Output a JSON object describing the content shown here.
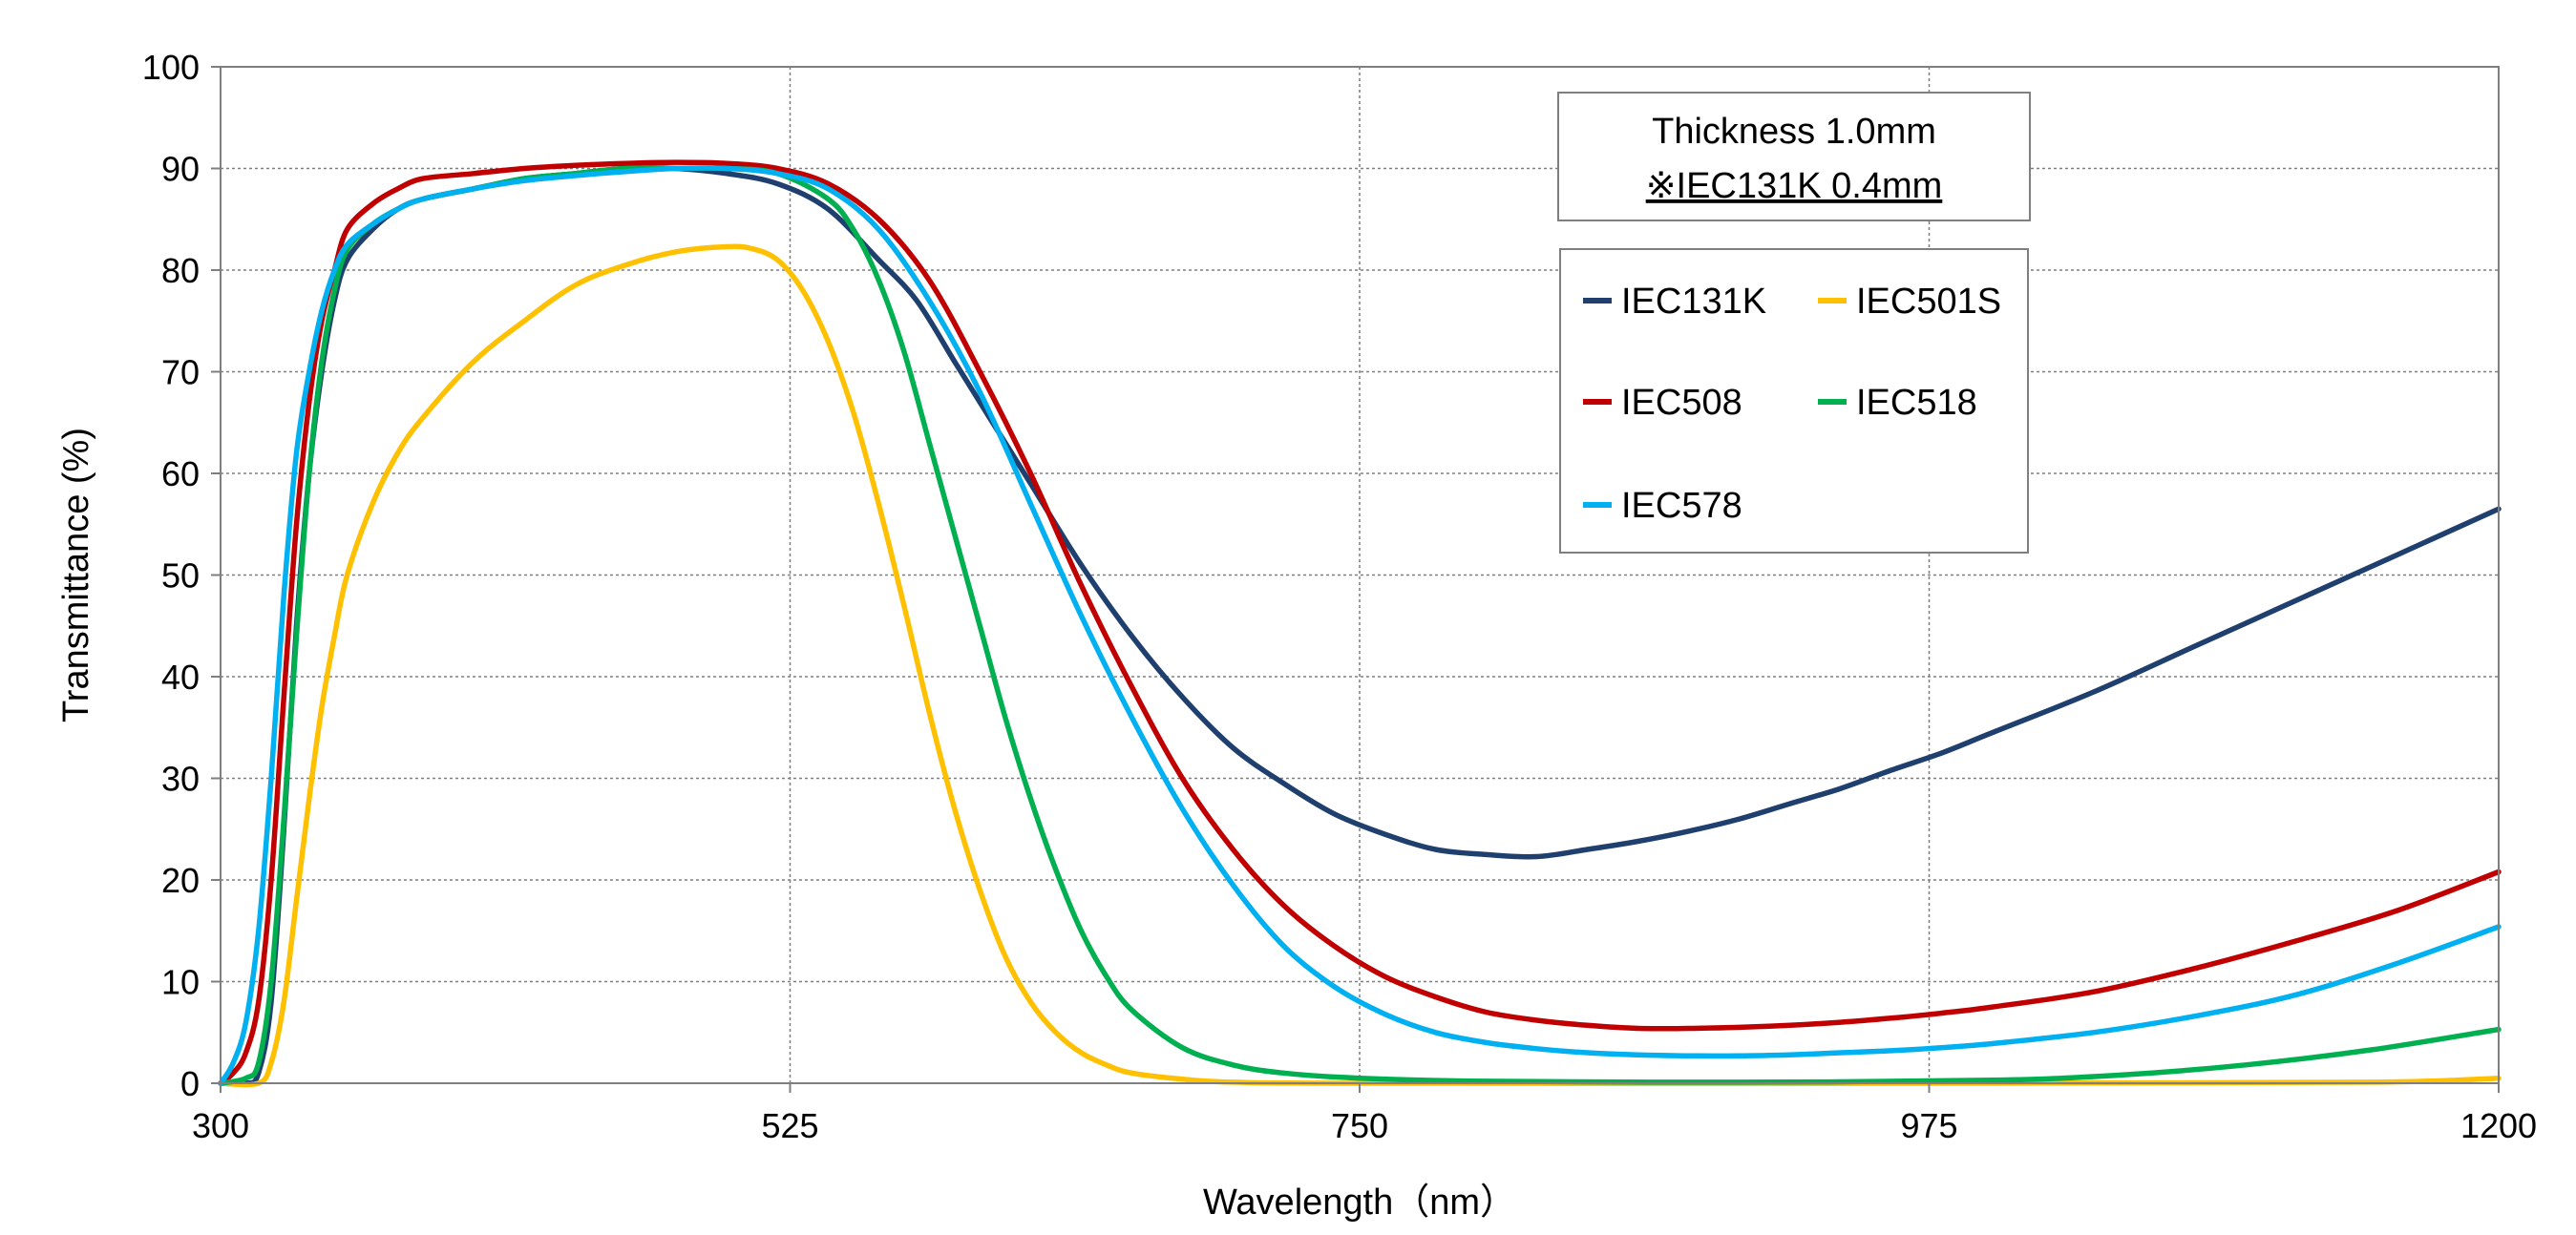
{
  "chart_data": {
    "type": "line",
    "xlabel": "Wavelength（nm）",
    "ylabel": "Transmittance (%)",
    "xlim": [
      300,
      1200
    ],
    "ylim": [
      0,
      100
    ],
    "x_ticks": [
      300,
      525,
      750,
      975,
      1200
    ],
    "y_ticks": [
      0,
      10,
      20,
      30,
      40,
      50,
      60,
      70,
      80,
      90,
      100
    ],
    "x_tick_labels": [
      "300",
      "525",
      "750",
      "975",
      "1200"
    ],
    "y_tick_labels": [
      "0",
      "10",
      "20",
      "30",
      "40",
      "50",
      "60",
      "70",
      "80",
      "90",
      "100"
    ],
    "grid": "dotted",
    "annotation": [
      "Thickness  1.0mm",
      "※IEC131K  0.4mm"
    ],
    "legend_position": "upper-right",
    "series": [
      {
        "name": "IEC131K",
        "color": "#1F3F6E",
        "points": [
          [
            300,
            0
          ],
          [
            310,
            0
          ],
          [
            315,
            1
          ],
          [
            320,
            8
          ],
          [
            325,
            25
          ],
          [
            330,
            45
          ],
          [
            335,
            60
          ],
          [
            340,
            70
          ],
          [
            345,
            77
          ],
          [
            350,
            81
          ],
          [
            360,
            84
          ],
          [
            370,
            86
          ],
          [
            380,
            87
          ],
          [
            400,
            88
          ],
          [
            420,
            89
          ],
          [
            440,
            89.5
          ],
          [
            460,
            90
          ],
          [
            480,
            90
          ],
          [
            500,
            89.5
          ],
          [
            520,
            88.5
          ],
          [
            540,
            86
          ],
          [
            560,
            81
          ],
          [
            575,
            77
          ],
          [
            590,
            71
          ],
          [
            600,
            67
          ],
          [
            620,
            59
          ],
          [
            640,
            51
          ],
          [
            660,
            44
          ],
          [
            680,
            38
          ],
          [
            700,
            33
          ],
          [
            720,
            29.5
          ],
          [
            740,
            26.5
          ],
          [
            760,
            24.5
          ],
          [
            780,
            23
          ],
          [
            800,
            22.5
          ],
          [
            820,
            22.3
          ],
          [
            840,
            23
          ],
          [
            860,
            23.8
          ],
          [
            880,
            24.8
          ],
          [
            900,
            26
          ],
          [
            920,
            27.5
          ],
          [
            940,
            29
          ],
          [
            960,
            30.8
          ],
          [
            980,
            32.5
          ],
          [
            1000,
            34.5
          ],
          [
            1040,
            38.5
          ],
          [
            1080,
            43
          ],
          [
            1120,
            47.5
          ],
          [
            1160,
            52
          ],
          [
            1200,
            56.5
          ]
        ]
      },
      {
        "name": "IEC501S",
        "color": "#FFC000",
        "points": [
          [
            300,
            0
          ],
          [
            315,
            0
          ],
          [
            320,
            2
          ],
          [
            325,
            8
          ],
          [
            330,
            18
          ],
          [
            335,
            28
          ],
          [
            340,
            37
          ],
          [
            345,
            44
          ],
          [
            350,
            50
          ],
          [
            360,
            57
          ],
          [
            370,
            62
          ],
          [
            380,
            65.5
          ],
          [
            400,
            71
          ],
          [
            420,
            75
          ],
          [
            440,
            78.5
          ],
          [
            460,
            80.5
          ],
          [
            480,
            81.8
          ],
          [
            500,
            82.3
          ],
          [
            510,
            82.1
          ],
          [
            520,
            81
          ],
          [
            530,
            78
          ],
          [
            540,
            73
          ],
          [
            550,
            66
          ],
          [
            560,
            57
          ],
          [
            570,
            47
          ],
          [
            580,
            36.5
          ],
          [
            590,
            27
          ],
          [
            600,
            19
          ],
          [
            610,
            12.5
          ],
          [
            620,
            8
          ],
          [
            630,
            5
          ],
          [
            640,
            3
          ],
          [
            650,
            1.8
          ],
          [
            660,
            1
          ],
          [
            680,
            0.4
          ],
          [
            700,
            0.1
          ],
          [
            750,
            0
          ],
          [
            1000,
            0
          ],
          [
            1150,
            0.1
          ],
          [
            1200,
            0.5
          ]
        ]
      },
      {
        "name": "IEC508",
        "color": "#C00000",
        "points": [
          [
            300,
            0
          ],
          [
            305,
            1
          ],
          [
            310,
            3
          ],
          [
            315,
            8
          ],
          [
            320,
            20
          ],
          [
            325,
            38
          ],
          [
            330,
            55
          ],
          [
            335,
            67
          ],
          [
            340,
            75
          ],
          [
            345,
            80
          ],
          [
            350,
            84
          ],
          [
            360,
            86.5
          ],
          [
            370,
            88
          ],
          [
            380,
            89
          ],
          [
            400,
            89.5
          ],
          [
            420,
            90
          ],
          [
            440,
            90.3
          ],
          [
            460,
            90.5
          ],
          [
            480,
            90.6
          ],
          [
            500,
            90.5
          ],
          [
            520,
            90
          ],
          [
            540,
            88.5
          ],
          [
            560,
            85
          ],
          [
            580,
            79
          ],
          [
            600,
            70
          ],
          [
            620,
            60
          ],
          [
            640,
            49
          ],
          [
            660,
            39
          ],
          [
            680,
            30
          ],
          [
            700,
            23
          ],
          [
            720,
            17.5
          ],
          [
            740,
            13.5
          ],
          [
            760,
            10.5
          ],
          [
            780,
            8.5
          ],
          [
            800,
            7
          ],
          [
            820,
            6.2
          ],
          [
            840,
            5.7
          ],
          [
            860,
            5.4
          ],
          [
            880,
            5.4
          ],
          [
            900,
            5.5
          ],
          [
            920,
            5.7
          ],
          [
            940,
            6
          ],
          [
            960,
            6.4
          ],
          [
            980,
            6.9
          ],
          [
            1000,
            7.5
          ],
          [
            1040,
            9
          ],
          [
            1080,
            11.3
          ],
          [
            1120,
            14
          ],
          [
            1160,
            17
          ],
          [
            1200,
            20.8
          ]
        ]
      },
      {
        "name": "IEC518",
        "color": "#00B050",
        "points": [
          [
            300,
            0
          ],
          [
            310,
            0.5
          ],
          [
            315,
            2
          ],
          [
            320,
            10
          ],
          [
            325,
            26
          ],
          [
            330,
            44
          ],
          [
            335,
            60
          ],
          [
            340,
            71
          ],
          [
            345,
            78
          ],
          [
            350,
            82
          ],
          [
            360,
            84.5
          ],
          [
            370,
            86
          ],
          [
            380,
            87
          ],
          [
            400,
            88
          ],
          [
            420,
            89
          ],
          [
            440,
            89.5
          ],
          [
            460,
            90
          ],
          [
            480,
            90
          ],
          [
            500,
            90
          ],
          [
            520,
            89.5
          ],
          [
            540,
            87
          ],
          [
            550,
            84
          ],
          [
            560,
            79
          ],
          [
            570,
            72
          ],
          [
            580,
            63
          ],
          [
            590,
            54
          ],
          [
            600,
            45
          ],
          [
            610,
            36
          ],
          [
            620,
            28
          ],
          [
            630,
            21
          ],
          [
            640,
            15
          ],
          [
            650,
            10.5
          ],
          [
            660,
            7.2
          ],
          [
            680,
            3.5
          ],
          [
            700,
            1.8
          ],
          [
            720,
            1
          ],
          [
            750,
            0.5
          ],
          [
            800,
            0.2
          ],
          [
            900,
            0.1
          ],
          [
            1000,
            0.3
          ],
          [
            1050,
            0.8
          ],
          [
            1100,
            1.8
          ],
          [
            1150,
            3.3
          ],
          [
            1200,
            5.3
          ]
        ]
      },
      {
        "name": "IEC578",
        "color": "#00B0F0",
        "points": [
          [
            300,
            0
          ],
          [
            305,
            2
          ],
          [
            310,
            6
          ],
          [
            315,
            15
          ],
          [
            320,
            30
          ],
          [
            325,
            48
          ],
          [
            330,
            62
          ],
          [
            335,
            70
          ],
          [
            340,
            76
          ],
          [
            345,
            80
          ],
          [
            350,
            82.5
          ],
          [
            360,
            84.5
          ],
          [
            370,
            86
          ],
          [
            380,
            87
          ],
          [
            400,
            88
          ],
          [
            420,
            88.8
          ],
          [
            440,
            89.3
          ],
          [
            460,
            89.7
          ],
          [
            480,
            90
          ],
          [
            500,
            90
          ],
          [
            520,
            89.5
          ],
          [
            540,
            88
          ],
          [
            560,
            84
          ],
          [
            580,
            77
          ],
          [
            600,
            68
          ],
          [
            620,
            57
          ],
          [
            640,
            46
          ],
          [
            660,
            36
          ],
          [
            680,
            27
          ],
          [
            700,
            19.5
          ],
          [
            720,
            13.5
          ],
          [
            740,
            9.5
          ],
          [
            760,
            6.8
          ],
          [
            780,
            5
          ],
          [
            800,
            4
          ],
          [
            820,
            3.4
          ],
          [
            840,
            3
          ],
          [
            860,
            2.8
          ],
          [
            880,
            2.7
          ],
          [
            900,
            2.7
          ],
          [
            920,
            2.8
          ],
          [
            940,
            3
          ],
          [
            960,
            3.2
          ],
          [
            980,
            3.5
          ],
          [
            1000,
            3.9
          ],
          [
            1040,
            5
          ],
          [
            1080,
            6.6
          ],
          [
            1120,
            8.7
          ],
          [
            1160,
            11.8
          ],
          [
            1200,
            15.4
          ]
        ]
      }
    ]
  }
}
